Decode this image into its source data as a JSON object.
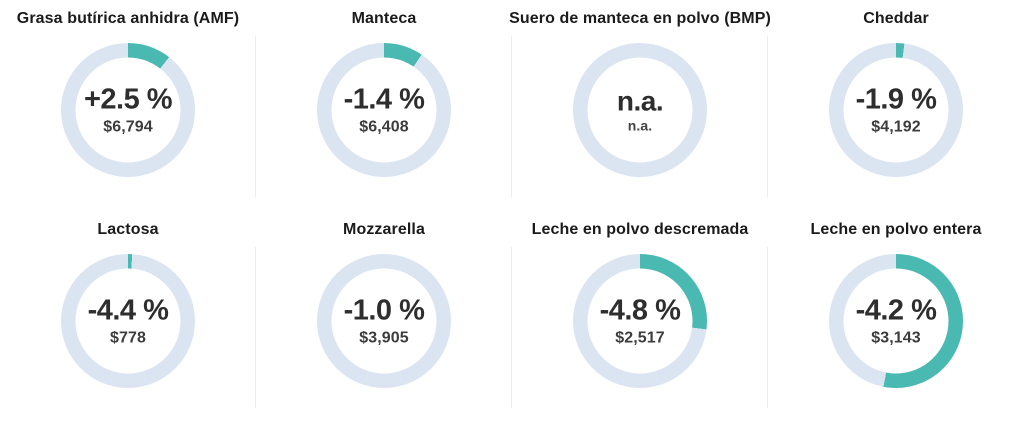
{
  "page": {
    "background": "#ffffff",
    "language": "es"
  },
  "colors": {
    "arc_teal": "#4ab9b1",
    "ring_light_blue": "#dbe5f2",
    "title_text": "#1b1b1b",
    "value_text": "#2e2e2e"
  },
  "chart_data": [
    {
      "type": "donut",
      "title": "Grasa butírica anhidra (AMF)",
      "change": "+2.5 %",
      "price": "$6,794",
      "arc_fraction": 0.105
    },
    {
      "type": "donut",
      "title": "Manteca",
      "change": "-1.4 %",
      "price": "$6,408",
      "arc_fraction": 0.095
    },
    {
      "type": "donut",
      "title": "Suero de manteca en polvo (BMP)",
      "change": "n.a.",
      "price": "n.a.",
      "arc_fraction": 0
    },
    {
      "type": "donut",
      "title": "Cheddar",
      "change": "-1.9 %",
      "price": "$4,192",
      "arc_fraction": 0.02
    },
    {
      "type": "donut",
      "title": "Lactosa",
      "change": "-4.4 %",
      "price": "$778",
      "arc_fraction": 0.01
    },
    {
      "type": "donut",
      "title": "Mozzarella",
      "change": "-1.0 %",
      "price": "$3,905",
      "arc_fraction": 0
    },
    {
      "type": "donut",
      "title": "Leche en polvo descremada",
      "change": "-4.8 %",
      "price": "$2,517",
      "arc_fraction": 0.27
    },
    {
      "type": "donut",
      "title": "Leche en polvo entera",
      "change": "-4.2 %",
      "price": "$3,143",
      "arc_fraction": 0.53
    }
  ]
}
